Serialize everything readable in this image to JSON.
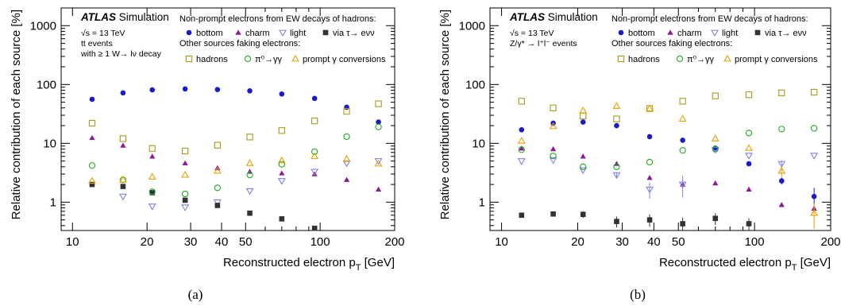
{
  "chart_data": [
    {
      "type": "scatter",
      "panel_label": "(a)",
      "xlabel_main": "Reconstructed electron p",
      "xlabel_sub": "T",
      "xlabel_unit": " [GeV]",
      "ylabel": "Relative contribution of each source [%]",
      "xscale": "log",
      "yscale": "log",
      "xlim": [
        9,
        200
      ],
      "ylim": [
        0.33,
        2000
      ],
      "xticks": [
        10,
        20,
        30,
        40,
        50,
        100,
        200
      ],
      "xtick_labels": [
        "10",
        "20",
        "30",
        "40",
        "50",
        "100",
        "200"
      ],
      "yticks": [
        1,
        10,
        100,
        1000
      ],
      "ytick_labels": [
        "1",
        "10",
        "100",
        "1000"
      ],
      "atlas_label": "ATLAS",
      "atlas_sub": "Simulation",
      "info_lines": [
        "√s = 13 TeV",
        "tt events",
        "with ≥ 1 W→ lν decay"
      ],
      "legend_header_1": "Non-prompt electrons from EW decays of hadrons:",
      "legend_header_2": "Other sources faking electrons:",
      "series": [
        {
          "name": "bottom",
          "color": "#1a1acc",
          "marker": "circle-filled",
          "x": [
            12,
            16,
            21,
            28.5,
            38.5,
            52,
            70,
            95,
            128,
            172
          ],
          "y": [
            56,
            72,
            81,
            84,
            82,
            78,
            69,
            58,
            41,
            23
          ]
        },
        {
          "name": "charm",
          "color": "#8a1a96",
          "marker": "triangle-filled",
          "x": [
            12,
            16,
            21,
            28.5,
            38.5,
            52,
            70,
            95,
            128,
            172
          ],
          "y": [
            12.4,
            9.2,
            6.0,
            4.6,
            3.8,
            3.3,
            3.1,
            3.0,
            2.4,
            1.65
          ]
        },
        {
          "name": "light",
          "color": "#8080e8",
          "marker": "triangle-down-open",
          "x": [
            16,
            21,
            28.5,
            38.5,
            52,
            70,
            95,
            128,
            172
          ],
          "y": [
            1.25,
            0.85,
            0.82,
            1.0,
            1.55,
            2.3,
            3.3,
            4.6,
            5.0
          ]
        },
        {
          "name": "via τ→ eνν",
          "color": "#333333",
          "marker": "square-filled",
          "x": [
            12,
            16,
            21,
            28.5,
            38.5,
            52,
            70,
            95
          ],
          "y": [
            2.0,
            1.85,
            1.45,
            1.08,
            0.88,
            0.65,
            0.52,
            0.36
          ]
        },
        {
          "name": "hadrons",
          "color": "#a89a1a",
          "marker": "square-open",
          "x": [
            12,
            16,
            21,
            28.5,
            38.5,
            52,
            70,
            95,
            128,
            172
          ],
          "y": [
            22,
            12,
            8.2,
            7.4,
            9.3,
            12.8,
            16.5,
            24,
            35,
            47
          ]
        },
        {
          "name": "π⁰→γγ",
          "color": "#22aa22",
          "marker": "circle-open",
          "x": [
            12,
            16,
            21,
            28.5,
            38.5,
            52,
            70,
            95,
            128,
            172
          ],
          "y": [
            4.2,
            2.4,
            1.5,
            1.38,
            1.75,
            2.9,
            4.4,
            7.2,
            13,
            19
          ]
        },
        {
          "name": "prompt γ conversions",
          "color": "#e8a000",
          "marker": "triangle-open",
          "x": [
            12,
            16,
            21,
            28.5,
            38.5,
            52,
            70,
            95,
            128,
            172
          ],
          "y": [
            2.3,
            2.4,
            2.7,
            2.9,
            3.4,
            4.6,
            5.1,
            6.0,
            5.4,
            4.5
          ]
        }
      ]
    },
    {
      "type": "scatter",
      "panel_label": "(b)",
      "xlabel_main": "Reconstructed electron p",
      "xlabel_sub": "T",
      "xlabel_unit": " [GeV]",
      "ylabel": "Relative contribution of each source [%]",
      "xscale": "log",
      "yscale": "log",
      "xlim": [
        9,
        200
      ],
      "ylim": [
        0.33,
        2000
      ],
      "xticks": [
        10,
        20,
        30,
        40,
        50,
        100,
        200
      ],
      "xtick_labels": [
        "10",
        "20",
        "30",
        "40",
        "50",
        "100",
        "200"
      ],
      "yticks": [
        1,
        10,
        100,
        1000
      ],
      "ytick_labels": [
        "1",
        "10",
        "100",
        "1000"
      ],
      "atlas_label": "ATLAS",
      "atlas_sub": "Simulation",
      "info_lines": [
        "√s = 13 TeV",
        "Z/γ* → l⁺l⁻ events"
      ],
      "legend_header_1": "Non-prompt electrons from EW decays of hadrons:",
      "legend_header_2": "Other sources faking electrons:",
      "series": [
        {
          "name": "bottom",
          "color": "#1a1acc",
          "marker": "circle-filled",
          "x": [
            12,
            16,
            21,
            28.5,
            38.5,
            52,
            70,
            95,
            128,
            172
          ],
          "y": [
            17,
            22,
            23,
            20,
            13,
            11.3,
            8.3,
            4.5,
            2.3,
            1.25
          ],
          "err": [
            0,
            0,
            0,
            0,
            0,
            0,
            0,
            0,
            0.3,
            0.5
          ]
        },
        {
          "name": "charm",
          "color": "#8a1a96",
          "marker": "triangle-filled",
          "x": [
            12,
            16,
            21,
            28.5,
            38.5,
            52,
            70,
            95,
            128,
            172
          ],
          "y": [
            8.2,
            8.0,
            6.0,
            4.5,
            2.6,
            2.0,
            2.1,
            1.65,
            0.9,
            0.78
          ]
        },
        {
          "name": "light",
          "color": "#8080e8",
          "marker": "triangle-down-open",
          "x": [
            12,
            16,
            21,
            28.5,
            38.5,
            52,
            70,
            95,
            128,
            172
          ],
          "y": [
            5.0,
            5.2,
            3.5,
            2.9,
            1.65,
            2.0,
            7.8,
            6.2,
            4.5,
            6.2
          ],
          "err": [
            0,
            0,
            0,
            0.3,
            0.5,
            0.8,
            0,
            0,
            0.6,
            0
          ]
        },
        {
          "name": "via τ→ eνν",
          "color": "#333333",
          "marker": "square-filled",
          "x": [
            12,
            16,
            21,
            28.5,
            38.5,
            52,
            70,
            95
          ],
          "y": [
            0.6,
            0.63,
            0.62,
            0.47,
            0.5,
            0.43,
            0.53,
            0.43
          ],
          "err": [
            0,
            0,
            0.08,
            0.1,
            0.12,
            0.12,
            0.12,
            0.1
          ]
        },
        {
          "name": "hadrons",
          "color": "#a89a1a",
          "marker": "square-open",
          "x": [
            12,
            16,
            21,
            28.5,
            38.5,
            52,
            70,
            95,
            128,
            172
          ],
          "y": [
            52,
            40,
            29,
            26,
            39,
            52,
            64,
            67,
            72,
            74
          ]
        },
        {
          "name": "π⁰→γγ",
          "color": "#22aa22",
          "marker": "circle-open",
          "x": [
            12,
            16,
            21,
            28.5,
            38.5,
            52,
            70,
            95,
            128,
            172
          ],
          "y": [
            7.8,
            6.1,
            4.0,
            4.0,
            4.8,
            7.6,
            8.0,
            15,
            17.5,
            18
          ]
        },
        {
          "name": "prompt γ conversions",
          "color": "#e8a000",
          "marker": "triangle-open",
          "x": [
            12,
            16,
            21,
            28.5,
            38.5,
            52,
            70,
            95,
            128,
            172
          ],
          "y": [
            11,
            19.5,
            36,
            43,
            39,
            26,
            12,
            8.3,
            3.4,
            0.65
          ],
          "err": [
            0,
            0,
            0,
            0,
            0,
            0,
            0,
            0,
            0.8,
            0.3
          ]
        }
      ]
    }
  ]
}
